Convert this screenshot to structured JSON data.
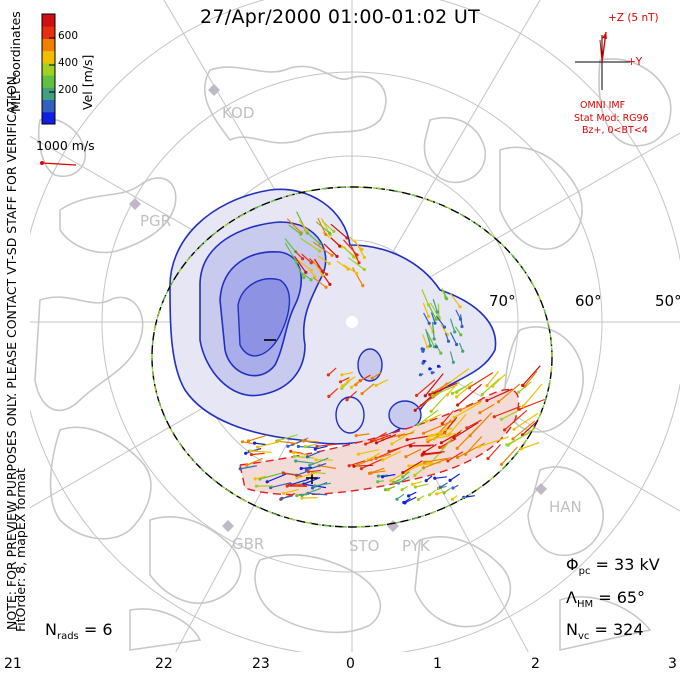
{
  "title": "27/Apr/2000 01:00-01:02 UT",
  "colorbar": {
    "label": "Vel [m/s]",
    "ticks": [
      "600",
      "400",
      "200"
    ],
    "colors": [
      "#1020e0",
      "#3060c0",
      "#40a080",
      "#60c040",
      "#a0d020",
      "#f0c000",
      "#f08000",
      "#e83010",
      "#d01010"
    ]
  },
  "coords_label": "MLT coordinates",
  "vector_scale": "1000 m/s",
  "watermark": "NOTE: FOR PREVIEW PURPOSES ONLY. PLEASE CONTACT VT-SD STAFF FOR VERIFICATION.",
  "fit_order": "FitOrder: 8, mapEX format",
  "imf": {
    "z_label": "+Z (5 nT)",
    "y_label": "+Y",
    "source": "OMNI IMF",
    "model": "Stat Mod: RG96",
    "condition": "Bz+, 0<BT<4"
  },
  "stations": [
    "KOD",
    "PGR",
    "GBR",
    "STO",
    "PYK",
    "HAN"
  ],
  "latitude_labels": [
    "70°",
    "60°",
    "50°"
  ],
  "mlt_ticks": [
    "21",
    "22",
    "23",
    "0",
    "1",
    "2",
    "3"
  ],
  "stats": {
    "phi_pc": "33 kV",
    "lambda_hm": "65°",
    "n_vc": "324",
    "n_rads": "6"
  },
  "chart_data": {
    "type": "polar-convection-map",
    "title": "27/Apr/2000 01:00-01:02 UT",
    "colorbar_range_mps": [
      0,
      700
    ],
    "colorbar_tick_values": [
      200,
      400,
      600
    ],
    "lat_circles_deg": [
      80,
      70,
      60,
      50
    ],
    "mlt_axis": [
      21,
      22,
      23,
      0,
      1,
      2,
      3
    ],
    "heppner_maynard_boundary_deg": 65,
    "cross_polar_cap_potential_kv": 33,
    "num_vectors": 324,
    "num_radars": 6,
    "vector_scale_mps": 1000
  }
}
